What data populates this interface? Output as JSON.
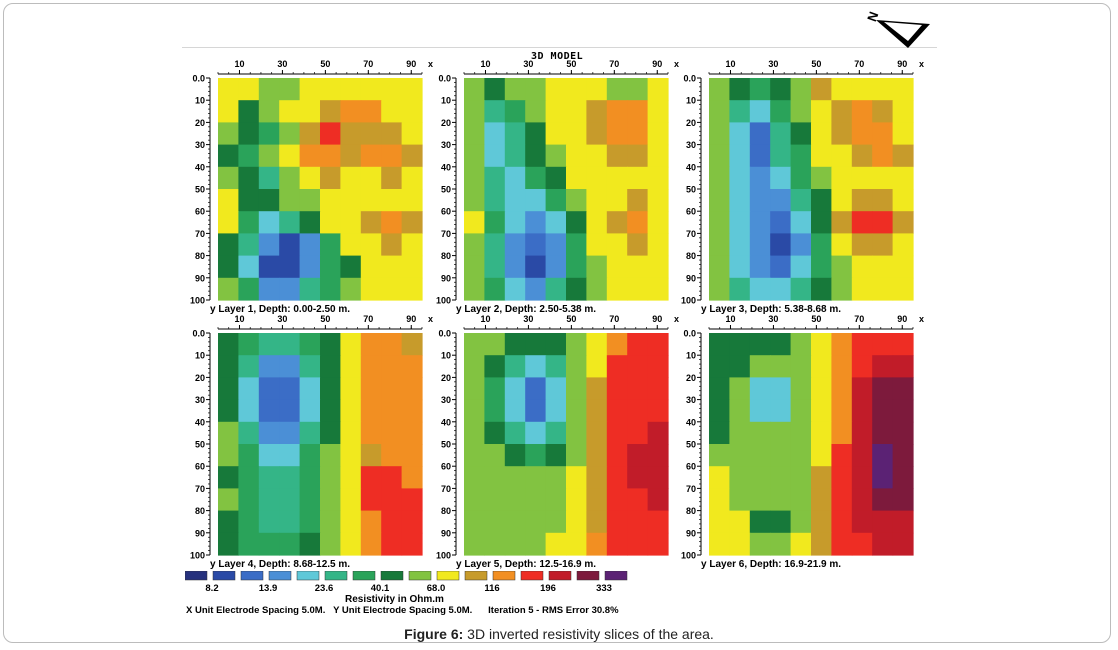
{
  "page": {
    "model_title": "3D MODEL",
    "north_label": "N"
  },
  "panels": [
    {
      "label": "y Layer 1, Depth: 0.00-2.50 m."
    },
    {
      "label": "y Layer 2, Depth: 2.50-5.38 m."
    },
    {
      "label": "y Layer 3, Depth: 5.38-8.68 m."
    },
    {
      "label": "y Layer 4, Depth: 8.68-12.5 m."
    },
    {
      "label": "y Layer 5, Depth: 12.5-16.9 m."
    },
    {
      "label": "y Layer 6, Depth: 16.9-21.9 m."
    }
  ],
  "axes": {
    "x_ticks": [
      "10",
      "30",
      "50",
      "70",
      "90"
    ],
    "x_label": "x",
    "y_ticks": [
      "0.0",
      "10",
      "20",
      "30",
      "40",
      "50",
      "60",
      "70",
      "80",
      "90",
      "100"
    ],
    "y_label": "y"
  },
  "legend": {
    "colors": [
      "#26317d",
      "#2a4aa6",
      "#3b6dc6",
      "#4b8fd6",
      "#5fc8d8",
      "#34b587",
      "#2aa35a",
      "#17793a",
      "#82c341",
      "#f1e91e",
      "#c79b2b",
      "#f28f22",
      "#ee2d24",
      "#c11c29",
      "#7d1a3c",
      "#5b2274"
    ],
    "labels": [
      "8.2",
      "13.9",
      "23.6",
      "40.1",
      "68.0",
      "116",
      "196",
      "333"
    ],
    "unit": "Resistivity in Ohm.m",
    "footer": "X Unit Electrode Spacing 5.0M.   Y Unit Electrode Spacing 5.0M.      Iteration 5 - RMS Error 30.8%"
  },
  "caption": {
    "bold": "Figure 6:",
    "text": " 3D inverted resistivity slices of the area."
  },
  "chart_data": {
    "type": "heatmap",
    "title": "3D MODEL",
    "x_ticks": [
      10,
      30,
      50,
      70,
      90
    ],
    "y_ticks": [
      0,
      10,
      20,
      30,
      40,
      50,
      60,
      70,
      80,
      90,
      100
    ],
    "xlabel": "x",
    "ylabel": "y",
    "xlim": [
      0,
      95
    ],
    "ylim": [
      0,
      100
    ],
    "y_inverted": true,
    "colorbar_label": "Resistivity in Ohm.m",
    "colorbar_ticks": [
      8.2,
      13.9,
      23.6,
      40.1,
      68.0,
      116,
      196,
      333
    ],
    "legend_order_note": "colors run low to high resistivity from dark blue to purple",
    "panels": [
      {
        "layer": 1,
        "depth": "0.00-2.50 m",
        "grid": [
          [
            9,
            9,
            8,
            8,
            9,
            9,
            9,
            9,
            9,
            9
          ],
          [
            9,
            7,
            8,
            9,
            9,
            10,
            11,
            11,
            9,
            9
          ],
          [
            8,
            7,
            6,
            8,
            10,
            12,
            10,
            10,
            10,
            9
          ],
          [
            7,
            6,
            8,
            9,
            11,
            11,
            10,
            11,
            11,
            10
          ],
          [
            8,
            7,
            5,
            8,
            9,
            10,
            9,
            9,
            10,
            9
          ],
          [
            9,
            7,
            7,
            8,
            8,
            9,
            9,
            9,
            9,
            9
          ],
          [
            9,
            6,
            4,
            5,
            7,
            9,
            9,
            10,
            11,
            10
          ],
          [
            7,
            5,
            3,
            1,
            3,
            6,
            9,
            9,
            10,
            9
          ],
          [
            7,
            4,
            1,
            1,
            3,
            6,
            7,
            9,
            9,
            9
          ],
          [
            8,
            6,
            3,
            3,
            5,
            6,
            8,
            9,
            9,
            9
          ]
        ]
      },
      {
        "layer": 2,
        "depth": "2.50-5.38 m",
        "grid": [
          [
            8,
            7,
            8,
            8,
            9,
            9,
            9,
            8,
            8,
            9
          ],
          [
            8,
            5,
            6,
            8,
            9,
            9,
            10,
            11,
            11,
            9
          ],
          [
            8,
            4,
            5,
            7,
            9,
            9,
            10,
            11,
            11,
            9
          ],
          [
            8,
            4,
            5,
            7,
            8,
            9,
            9,
            10,
            10,
            9
          ],
          [
            8,
            5,
            4,
            6,
            7,
            9,
            9,
            9,
            9,
            9
          ],
          [
            8,
            5,
            4,
            4,
            6,
            8,
            9,
            9,
            10,
            9
          ],
          [
            9,
            6,
            4,
            3,
            4,
            7,
            9,
            10,
            11,
            9
          ],
          [
            8,
            5,
            3,
            2,
            3,
            6,
            9,
            9,
            10,
            9
          ],
          [
            8,
            5,
            3,
            1,
            3,
            6,
            8,
            9,
            9,
            9
          ],
          [
            8,
            6,
            4,
            3,
            5,
            7,
            8,
            9,
            9,
            9
          ]
        ]
      },
      {
        "layer": 3,
        "depth": "5.38-8.68 m",
        "grid": [
          [
            8,
            7,
            6,
            7,
            8,
            10,
            9,
            9,
            9,
            9
          ],
          [
            8,
            5,
            4,
            6,
            8,
            9,
            10,
            11,
            10,
            9
          ],
          [
            8,
            4,
            2,
            5,
            7,
            9,
            10,
            11,
            11,
            9
          ],
          [
            8,
            4,
            2,
            5,
            6,
            9,
            9,
            10,
            11,
            10
          ],
          [
            8,
            4,
            3,
            4,
            6,
            8,
            9,
            9,
            9,
            9
          ],
          [
            8,
            4,
            3,
            3,
            5,
            7,
            9,
            10,
            10,
            9
          ],
          [
            8,
            4,
            3,
            2,
            4,
            7,
            10,
            12,
            12,
            10
          ],
          [
            8,
            4,
            3,
            1,
            3,
            6,
            9,
            10,
            10,
            9
          ],
          [
            8,
            4,
            3,
            2,
            4,
            6,
            8,
            9,
            9,
            9
          ],
          [
            8,
            5,
            4,
            4,
            5,
            7,
            8,
            9,
            9,
            9
          ]
        ]
      },
      {
        "layer": 4,
        "depth": "8.68-12.5 m",
        "grid": [
          [
            7,
            6,
            5,
            5,
            6,
            7,
            9,
            11,
            11,
            10
          ],
          [
            7,
            5,
            3,
            3,
            5,
            7,
            9,
            11,
            11,
            11
          ],
          [
            7,
            4,
            2,
            2,
            4,
            7,
            9,
            11,
            11,
            11
          ],
          [
            7,
            4,
            2,
            2,
            4,
            7,
            9,
            11,
            11,
            11
          ],
          [
            8,
            5,
            3,
            3,
            5,
            7,
            9,
            11,
            11,
            11
          ],
          [
            8,
            6,
            4,
            4,
            6,
            8,
            9,
            10,
            11,
            11
          ],
          [
            7,
            6,
            5,
            5,
            6,
            8,
            9,
            12,
            12,
            11
          ],
          [
            8,
            6,
            5,
            5,
            6,
            8,
            9,
            12,
            12,
            12
          ],
          [
            7,
            6,
            5,
            5,
            6,
            8,
            9,
            11,
            12,
            12
          ],
          [
            7,
            6,
            6,
            6,
            7,
            8,
            9,
            11,
            12,
            12
          ]
        ]
      },
      {
        "layer": 5,
        "depth": "12.5-16.9 m",
        "grid": [
          [
            8,
            8,
            7,
            7,
            7,
            8,
            9,
            11,
            12,
            12
          ],
          [
            8,
            7,
            5,
            4,
            5,
            8,
            9,
            12,
            12,
            12
          ],
          [
            8,
            6,
            4,
            2,
            4,
            8,
            10,
            12,
            12,
            12
          ],
          [
            8,
            6,
            4,
            2,
            4,
            8,
            10,
            12,
            12,
            12
          ],
          [
            8,
            7,
            5,
            4,
            5,
            8,
            10,
            12,
            12,
            13
          ],
          [
            8,
            8,
            7,
            6,
            7,
            8,
            10,
            12,
            13,
            13
          ],
          [
            8,
            8,
            8,
            8,
            8,
            9,
            10,
            12,
            13,
            13
          ],
          [
            8,
            8,
            8,
            8,
            8,
            9,
            10,
            12,
            12,
            13
          ],
          [
            8,
            8,
            8,
            8,
            8,
            9,
            10,
            12,
            12,
            12
          ],
          [
            8,
            8,
            8,
            8,
            9,
            9,
            11,
            12,
            12,
            12
          ]
        ]
      },
      {
        "layer": 6,
        "depth": "16.9-21.9 m",
        "grid": [
          [
            7,
            7,
            7,
            7,
            8,
            9,
            11,
            12,
            12,
            12
          ],
          [
            7,
            7,
            8,
            8,
            8,
            9,
            11,
            12,
            13,
            13
          ],
          [
            7,
            8,
            4,
            4,
            8,
            9,
            11,
            13,
            14,
            14
          ],
          [
            7,
            8,
            4,
            4,
            8,
            9,
            11,
            13,
            14,
            14
          ],
          [
            7,
            8,
            8,
            8,
            8,
            9,
            11,
            13,
            14,
            14
          ],
          [
            8,
            8,
            8,
            8,
            8,
            9,
            12,
            13,
            15,
            14
          ],
          [
            9,
            8,
            8,
            8,
            8,
            10,
            12,
            13,
            15,
            14
          ],
          [
            9,
            8,
            8,
            8,
            8,
            10,
            12,
            13,
            14,
            14
          ],
          [
            9,
            9,
            7,
            7,
            8,
            10,
            12,
            13,
            13,
            13
          ],
          [
            9,
            9,
            8,
            8,
            9,
            10,
            12,
            12,
            13,
            13
          ]
        ]
      }
    ]
  }
}
